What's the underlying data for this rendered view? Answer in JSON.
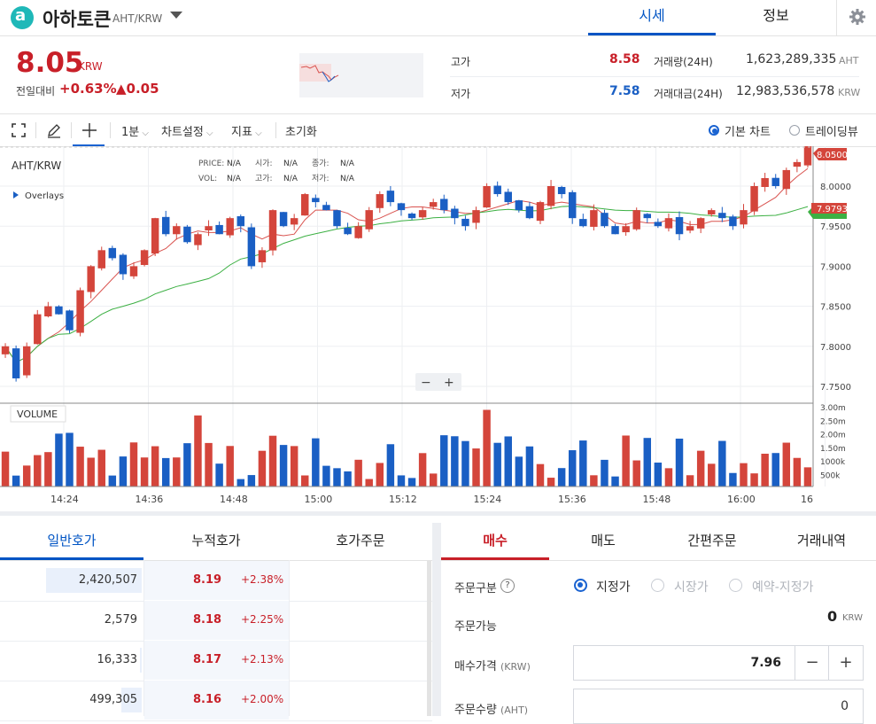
{
  "header": {
    "logo_glyph": "a",
    "coin_name": "아하토큰",
    "pair": "AHT/KRW",
    "tabs": [
      "시세",
      "정보"
    ],
    "gear_icon": "gear-icon"
  },
  "summary": {
    "price": "8.05",
    "unit": "KRW",
    "change_label": "전일대비",
    "change_rate": "+0.63%",
    "change_amount": "▲0.05",
    "high_label": "고가",
    "high_value": "8.58",
    "low_label": "저가",
    "low_value": "7.58",
    "volume_label": "거래량(24H)",
    "volume_value": "1,623,289,335",
    "volume_unit": "AHT",
    "amount_label": "거래대금(24H)",
    "amount_value": "12,983,536,578",
    "amount_unit": "KRW"
  },
  "toolbar": {
    "interval": "1분",
    "chart_settings": "차트설정",
    "indicators": "지표",
    "reset": "초기화",
    "basic_chart": "기본 차트",
    "trading_view": "트레이딩뷰"
  },
  "chart_info": {
    "symbol": "AHT/KRW",
    "overlays": "Overlays",
    "price_lbl": "PRICE:",
    "open_lbl": "시가:",
    "close_lbl": "종가:",
    "vol_lbl": "VOL:",
    "high_lbl": "고가:",
    "low_lbl": "저가:",
    "na": "N/A",
    "volume_title": "VOLUME",
    "zoom_minus": "−",
    "zoom_plus": "+",
    "last_price_tag": "8.0500",
    "ma_tag": "7.9793"
  },
  "chart_data": {
    "type": "candlestick",
    "price_axis_ticks": [
      "8.0000",
      "7.9500",
      "7.9000",
      "7.8500",
      "7.8000",
      "7.7500"
    ],
    "volume_axis_ticks": [
      "3.00m",
      "2.50m",
      "2.00m",
      "1.50m",
      "1000k",
      "500k"
    ],
    "x_ticks": [
      "14:24",
      "14:36",
      "14:48",
      "15:00",
      "15:12",
      "15:24",
      "15:36",
      "15:48",
      "16:00",
      "16"
    ],
    "last_price": 8.05,
    "candle_count": 76,
    "ma_short_color": "#d9534f",
    "ma_long_color": "#3cb043",
    "up_color": "#d4453b",
    "down_color": "#1a5fc4"
  },
  "orderbook": {
    "tabs": [
      "일반호가",
      "누적호가",
      "호가주문"
    ],
    "rows": [
      {
        "qty": "2,420,507",
        "price": "8.19",
        "pct": "+2.38%",
        "fill": 0.72
      },
      {
        "qty": "2,579",
        "price": "8.18",
        "pct": "+2.25%",
        "fill": 0.0
      },
      {
        "qty": "16,333",
        "price": "8.17",
        "pct": "+2.13%",
        "fill": 0.01
      },
      {
        "qty": "499,305",
        "price": "8.16",
        "pct": "+2.00%",
        "fill": 0.15
      }
    ]
  },
  "order": {
    "tabs": [
      "매수",
      "매도",
      "간편주문",
      "거래내역"
    ],
    "type_label": "주문구분",
    "help": "?",
    "type_options": [
      "지정가",
      "시장가",
      "예약-지정가"
    ],
    "available_label": "주문가능",
    "available_value": "0",
    "available_unit": "KRW",
    "price_label": "매수가격",
    "price_unit": "(KRW)",
    "price_value": "7.96",
    "qty_label": "주문수량",
    "qty_unit": "(AHT)",
    "qty_value": "0",
    "minus": "−",
    "plus": "+"
  }
}
